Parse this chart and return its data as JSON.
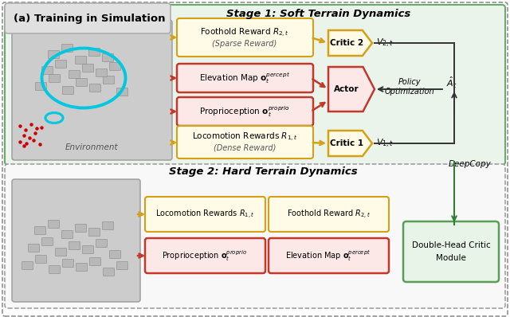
{
  "title": "(a) Training in Simulation",
  "stage1_title": "Stage 1: Soft Terrain Dynamics",
  "stage2_title": "Stage 2: Hard Terrain Dynamics",
  "yellow_box_bg": "#fffbe6",
  "yellow_box_ec": "#d4a017",
  "red_box_bg": "#fde8e8",
  "red_box_ec": "#c0392b",
  "green_box_bg": "#e8f4e8",
  "green_box_ec": "#5a9e5a",
  "stage1_bg": "#eaf4ea",
  "stage1_ec": "#6aaa6a",
  "stage2_bg": "#f8f8f8",
  "stage2_ec": "#999999",
  "outer_ec": "#888888",
  "title_bg": "#e0e0e0",
  "title_ec": "#aaaaaa",
  "env_bg": "#cccccc",
  "env_ec": "#999999",
  "arrow_yellow": "#d4a017",
  "arrow_red": "#c0392b",
  "arrow_dark": "#333333",
  "arrow_green": "#2e7d32",
  "deepcopy_color": "#2e7d32"
}
